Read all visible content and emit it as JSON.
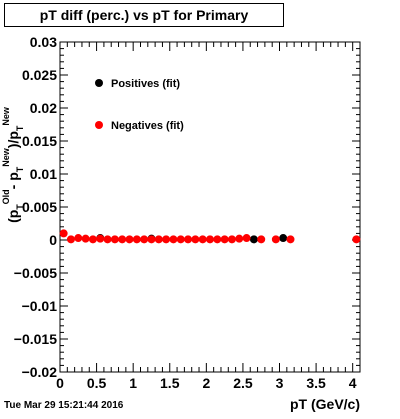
{
  "chart_data": {
    "type": "scatter",
    "title": "pT diff (perc.) vs pT for Primary",
    "xlabel": "pT (GeV/c)",
    "ylabel": {
      "main": "(p",
      "parts": [
        "T",
        "Old",
        "- p",
        "T",
        "New",
        ")/p",
        "T",
        "New"
      ]
    },
    "xlim": [
      0,
      4.1
    ],
    "ylim": [
      -0.02,
      0.03
    ],
    "x_ticks": [
      "0",
      "0.5",
      "1",
      "1.5",
      "2",
      "2.5",
      "3",
      "3.5",
      "4"
    ],
    "x_tick_values": [
      0,
      0.5,
      1,
      1.5,
      2,
      2.5,
      3,
      3.5,
      4
    ],
    "y_ticks": [
      "−0.02",
      "−0.015",
      "−0.01",
      "−0.005",
      "0",
      "0.005",
      "0.01",
      "0.015",
      "0.02",
      "0.025",
      "0.03"
    ],
    "y_tick_values": [
      -0.02,
      -0.015,
      -0.01,
      -0.005,
      0,
      0.005,
      0.01,
      0.015,
      0.02,
      0.025,
      0.03
    ],
    "legend": {
      "placement": "top-left",
      "entries": [
        "Positives (fit)",
        "Negatives (fit)"
      ]
    },
    "series": [
      {
        "name": "Positives (fit)",
        "color": "#000000",
        "x": [
          0.55,
          1.25,
          2.65,
          3.05
        ],
        "y": [
          0.0003,
          0.0002,
          0.0001,
          0.0003
        ]
      },
      {
        "name": "Negatives (fit)",
        "color": "#ff0000",
        "x": [
          0.05,
          0.15,
          0.25,
          0.35,
          0.45,
          0.55,
          0.65,
          0.75,
          0.85,
          0.95,
          1.05,
          1.15,
          1.25,
          1.35,
          1.45,
          1.55,
          1.65,
          1.75,
          1.85,
          1.95,
          2.05,
          2.15,
          2.25,
          2.35,
          2.45,
          2.55,
          2.75,
          2.95,
          3.15,
          4.05
        ],
        "y": [
          0.001,
          0.0001,
          0.0003,
          0.0002,
          0.0001,
          0.0002,
          0.0001,
          0.0001,
          0.0001,
          0.0001,
          0.0001,
          0.0001,
          0.0001,
          0.0001,
          0.0001,
          0.0001,
          0.0001,
          0.0001,
          0.0001,
          0.0001,
          0.0001,
          0.0001,
          0.0001,
          0.0001,
          0.0002,
          0.0003,
          0.0001,
          0.0001,
          0.0001,
          0.0001
        ]
      }
    ]
  },
  "footer": {
    "timestamp": "Tue Mar 29 15:21:44 2016"
  }
}
